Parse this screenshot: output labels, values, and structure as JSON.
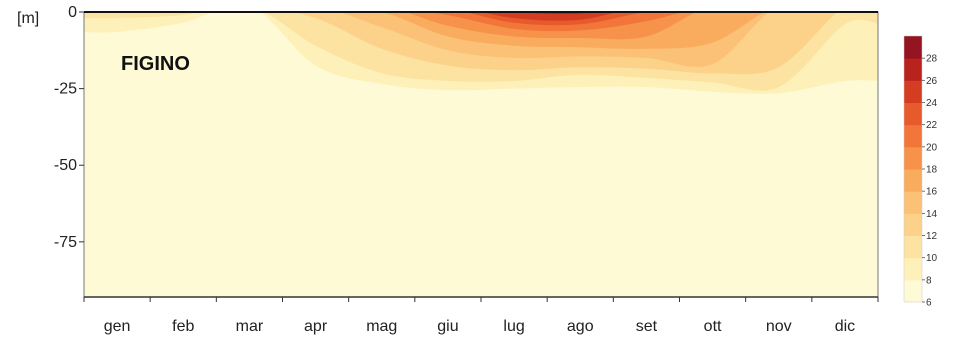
{
  "chart_data": {
    "type": "heatmap",
    "title": "FIGINO",
    "ylabel": "[m]",
    "xlabel": "",
    "categories": [
      "gen",
      "feb",
      "mar",
      "apr",
      "mag",
      "giu",
      "lug",
      "ago",
      "set",
      "ott",
      "nov",
      "dic"
    ],
    "y_ticks": [
      0,
      -25,
      -50,
      -75
    ],
    "ylim": [
      -93,
      0
    ],
    "grid": false,
    "colorbar": {
      "placement": "right",
      "range": [
        6,
        30
      ],
      "ticks": [
        6,
        8,
        10,
        12,
        14,
        16,
        18,
        20,
        22,
        24,
        26,
        28
      ],
      "colors": [
        "#fefad6",
        "#fef0b9",
        "#fde3a1",
        "#fcd28b",
        "#fbc176",
        "#f9ac5e",
        "#f6924a",
        "#f2763a",
        "#e65a2c",
        "#d53d22",
        "#b8231d",
        "#951421"
      ]
    },
    "contours": [
      {
        "level": 8,
        "depth_by_month": [
          -6.5,
          -3.5,
          2,
          -17.5,
          -23.5,
          -25.5,
          -25,
          -24.5,
          -24.5,
          -26,
          -26.5,
          -22.5
        ]
      },
      {
        "level": 10,
        "depth_by_month": [
          -2,
          -1,
          2,
          -11,
          -20,
          -22.5,
          -22.5,
          -20.5,
          -21.5,
          -23,
          -24.5,
          -4
        ]
      },
      {
        "level": 12,
        "depth_by_month": [
          2,
          2,
          2,
          -2,
          -12,
          -17.5,
          -19,
          -18,
          -18.5,
          -20,
          -18,
          2
        ]
      },
      {
        "level": 14,
        "depth_by_month": [
          2,
          2,
          2,
          2,
          -5,
          -12.5,
          -15,
          -14.5,
          -15,
          -17,
          2,
          2
        ]
      },
      {
        "level": 16,
        "depth_by_month": [
          2,
          2,
          2,
          2,
          0,
          -8,
          -11,
          -11.5,
          -12,
          -10,
          2,
          2
        ]
      },
      {
        "level": 18,
        "depth_by_month": [
          2,
          2,
          2,
          2,
          2,
          -4.5,
          -8,
          -8.5,
          -8,
          2,
          2,
          2
        ]
      },
      {
        "level": 20,
        "depth_by_month": [
          2,
          2,
          2,
          2,
          2,
          -1,
          -5.5,
          -6,
          -3,
          2,
          2,
          2
        ]
      },
      {
        "level": 22,
        "depth_by_month": [
          2,
          2,
          2,
          2,
          2,
          1,
          -3.5,
          -4,
          0,
          2,
          2,
          2
        ]
      },
      {
        "level": 24,
        "depth_by_month": [
          2,
          2,
          2,
          2,
          2,
          2,
          -2,
          -2.5,
          2,
          2,
          2,
          2
        ]
      },
      {
        "level": 26,
        "depth_by_month": [
          2,
          2,
          2,
          2,
          2,
          2,
          0,
          -0.5,
          2,
          2,
          2,
          2
        ]
      }
    ]
  }
}
